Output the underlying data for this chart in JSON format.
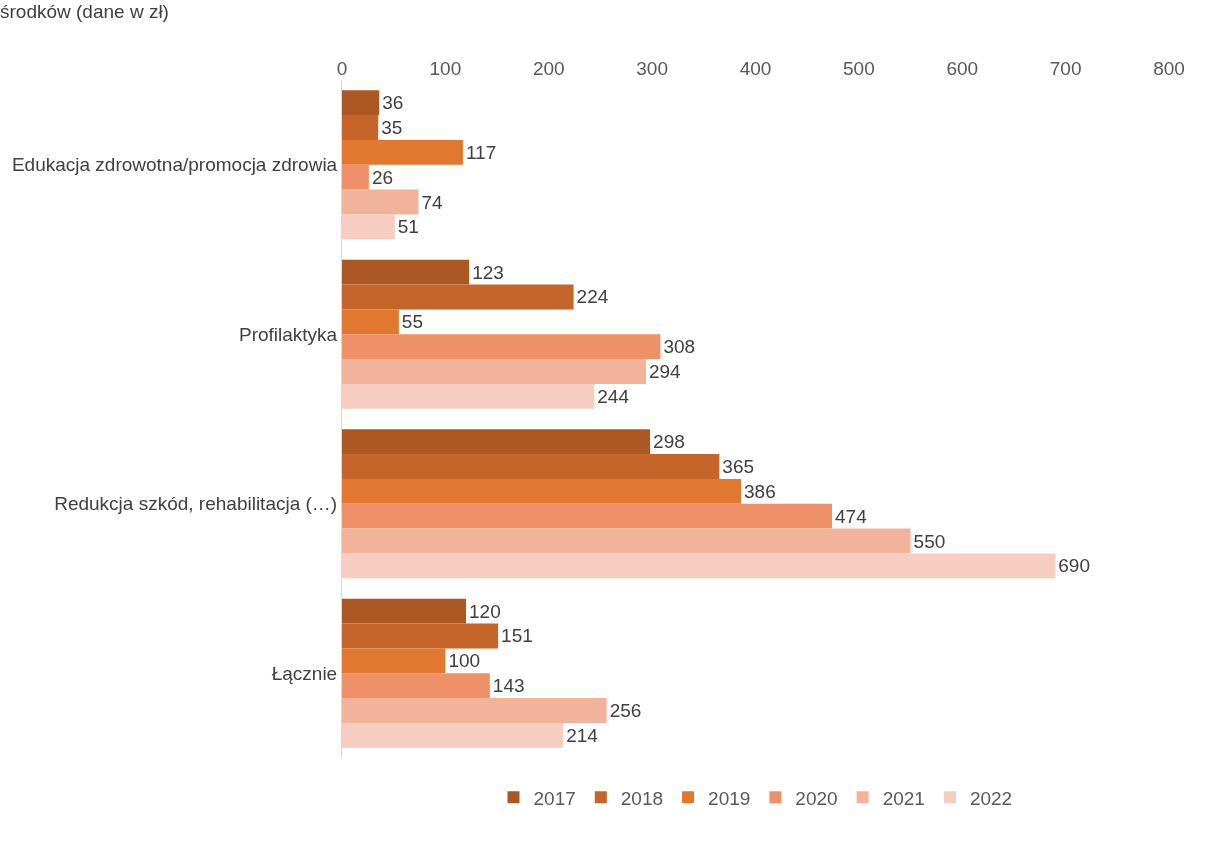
{
  "chart_data": {
    "type": "bar",
    "orientation": "horizontal",
    "title": "środków (dane w zł)",
    "categories": [
      "Edukacja zdrowotna/promocja zdrowia",
      "Profilaktyka",
      "Redukcja szkód, rehabilitacja (…)",
      "Łącznie"
    ],
    "series": [
      {
        "name": "2017",
        "color": "#ad5822",
        "values": [
          36,
          123,
          298,
          120
        ]
      },
      {
        "name": "2018",
        "color": "#c5652a",
        "values": [
          35,
          224,
          365,
          151
        ]
      },
      {
        "name": "2019",
        "color": "#e0782f",
        "values": [
          117,
          55,
          386,
          100
        ]
      },
      {
        "name": "2020",
        "color": "#ef9168",
        "values": [
          26,
          308,
          474,
          143
        ]
      },
      {
        "name": "2021",
        "color": "#f2b39b",
        "values": [
          74,
          294,
          550,
          256
        ]
      },
      {
        "name": "2022",
        "color": "#f6cdc0",
        "values": [
          51,
          244,
          690,
          214
        ]
      }
    ],
    "xlim": [
      0,
      800
    ],
    "xticks": [
      0,
      100,
      200,
      300,
      400,
      500,
      600,
      700,
      800
    ],
    "data_labels": true,
    "grid": false,
    "legend": "bottom"
  }
}
